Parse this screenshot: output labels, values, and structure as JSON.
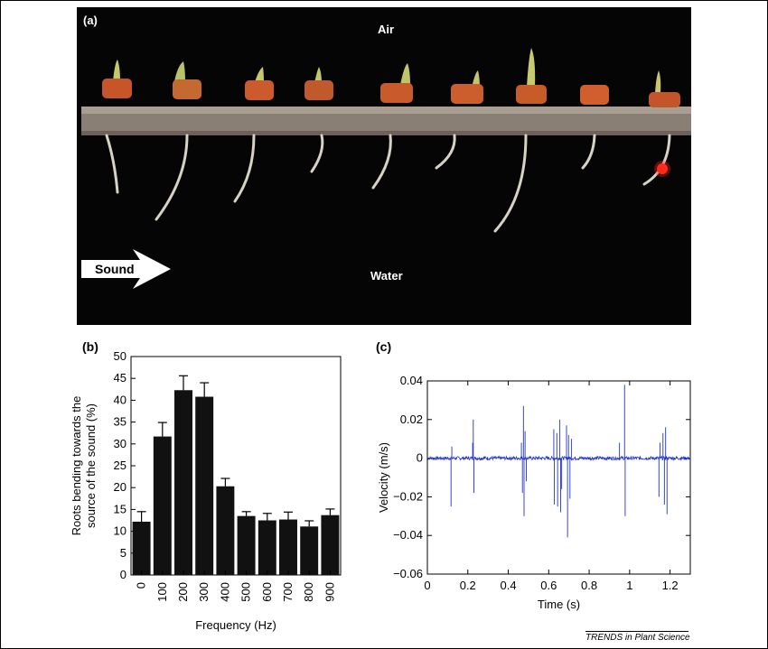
{
  "panel_a": {
    "tag": "(a)",
    "air_label": "Air",
    "water_label": "Water",
    "sound_label": "Sound"
  },
  "panel_b": {
    "tag": "(b)"
  },
  "panel_c": {
    "tag": "(c)"
  },
  "footer": "TRENDS in Plant Science",
  "chart_data": [
    {
      "type": "bar",
      "xlabel": "Frequency (Hz)",
      "ylabel": "Roots bending towards the source of the sound (%)",
      "categories": [
        "0",
        "100",
        "200",
        "300",
        "400",
        "500",
        "600",
        "700",
        "800",
        "900"
      ],
      "values": [
        12.2,
        31.7,
        42.3,
        40.8,
        20.3,
        13.5,
        12.5,
        12.7,
        11.1,
        13.7
      ],
      "errors": [
        2.3,
        3.2,
        3.3,
        3.2,
        1.8,
        1.0,
        1.6,
        1.7,
        1.3,
        1.4
      ],
      "ylim": [
        0,
        50
      ],
      "yticks": [
        "0",
        "5",
        "10",
        "15",
        "20",
        "25",
        "30",
        "35",
        "40",
        "45",
        "50"
      ],
      "color": "#111111"
    },
    {
      "type": "line",
      "xlabel": "Time (s)",
      "ylabel": "Velocity (m/s)",
      "xlim": [
        0,
        1.3
      ],
      "ylim": [
        -0.06,
        0.04
      ],
      "xticks": [
        "0",
        "0.2",
        "0.4",
        "0.6",
        "0.8",
        "1",
        "1.2"
      ],
      "yticks": [
        "−0.06",
        "−0.04",
        "−0.02",
        "0",
        "0.02",
        "0.04"
      ],
      "color": "#2233cc",
      "spikes": [
        {
          "x": 0.117,
          "y": -0.025
        },
        {
          "x": 0.121,
          "y": 0.006
        },
        {
          "x": 0.227,
          "y": 0.02
        },
        {
          "x": 0.23,
          "y": -0.018
        },
        {
          "x": 0.224,
          "y": 0.008
        },
        {
          "x": 0.475,
          "y": 0.027
        },
        {
          "x": 0.478,
          "y": -0.03
        },
        {
          "x": 0.47,
          "y": -0.018
        },
        {
          "x": 0.483,
          "y": 0.014
        },
        {
          "x": 0.489,
          "y": -0.012
        },
        {
          "x": 0.465,
          "y": 0.008
        },
        {
          "x": 0.625,
          "y": 0.015
        },
        {
          "x": 0.628,
          "y": -0.024
        },
        {
          "x": 0.64,
          "y": 0.013
        },
        {
          "x": 0.644,
          "y": -0.025
        },
        {
          "x": 0.655,
          "y": 0.02
        },
        {
          "x": 0.659,
          "y": -0.028
        },
        {
          "x": 0.664,
          "y": -0.016
        },
        {
          "x": 0.688,
          "y": 0.017
        },
        {
          "x": 0.693,
          "y": -0.041
        },
        {
          "x": 0.698,
          "y": 0.012
        },
        {
          "x": 0.705,
          "y": -0.021
        },
        {
          "x": 0.712,
          "y": 0.01
        },
        {
          "x": 0.95,
          "y": 0.008
        },
        {
          "x": 0.975,
          "y": 0.038
        },
        {
          "x": 0.978,
          "y": -0.03
        },
        {
          "x": 1.145,
          "y": -0.02
        },
        {
          "x": 1.15,
          "y": 0.008
        },
        {
          "x": 1.165,
          "y": 0.013
        },
        {
          "x": 1.172,
          "y": -0.024
        },
        {
          "x": 1.178,
          "y": 0.016
        },
        {
          "x": 1.185,
          "y": -0.029
        }
      ]
    }
  ]
}
